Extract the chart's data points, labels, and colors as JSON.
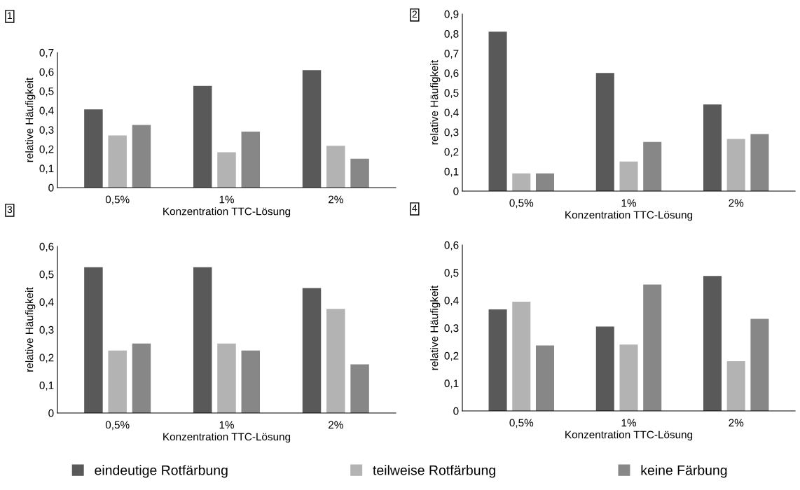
{
  "chart_data": [
    {
      "type": "bar",
      "annotations": [
        "1"
      ],
      "xlabel": "Konzentration TTC-Lösung",
      "ylabel": "relative Häufigkeit",
      "categories": [
        "0,5%",
        "1%",
        "2%"
      ],
      "legend": "bottom",
      "ylim": [
        0,
        0.7
      ],
      "yticks": [
        0,
        {
          "value": 0.1,
          "label": "0,1"
        },
        {
          "value": 0.2,
          "label": "0,2"
        },
        {
          "value": 0.3,
          "label": "0,3"
        },
        {
          "value": 0.4,
          "label": "0,4"
        },
        {
          "value": 0.5,
          "label": "0,5"
        },
        {
          "value": 0.6,
          "label": "0,6"
        },
        {
          "value": 0.7,
          "label": "0,7"
        }
      ],
      "series": [
        {
          "name": "eindeutige Rotfärbung",
          "color": "#595959",
          "values": [
            0.405,
            0.527,
            0.608
          ]
        },
        {
          "name": "teilweise Rotfärbung",
          "color": "#b3b3b3",
          "values": [
            0.27,
            0.183,
            0.217
          ]
        },
        {
          "name": "keine Färbung",
          "color": "#878787",
          "values": [
            0.325,
            0.29,
            0.15
          ]
        }
      ]
    },
    {
      "type": "bar",
      "annotations": [
        "2"
      ],
      "xlabel": "Konzentration TTC-Lösung",
      "ylabel": "relative Häufigkeit",
      "categories": [
        "0,5%",
        "1%",
        "2%"
      ],
      "ylim": [
        0,
        0.9
      ],
      "yticks": [
        0,
        {
          "value": 0.1,
          "label": "0,1"
        },
        {
          "value": 0.2,
          "label": "0,2"
        },
        {
          "value": 0.3,
          "label": "0,3"
        },
        {
          "value": 0.4,
          "label": "0,4"
        },
        {
          "value": 0.5,
          "label": "0,5"
        },
        {
          "value": 0.6,
          "label": "0,6"
        },
        {
          "value": 0.7,
          "label": "0,7"
        },
        {
          "value": 0.8,
          "label": "0,8"
        },
        {
          "value": 0.9,
          "label": "0,9"
        }
      ],
      "series": [
        {
          "color": "#595959",
          "values": [
            0.81,
            0.6,
            0.44
          ]
        },
        {
          "color": "#b3b3b3",
          "values": [
            0.09,
            0.15,
            0.265
          ]
        },
        {
          "color": "#878787",
          "values": [
            0.09,
            0.25,
            0.29
          ]
        }
      ]
    },
    {
      "type": "bar",
      "annotations": [
        "3"
      ],
      "xlabel": "Konzentration TTC-Lösung",
      "ylabel": "relative Häufigkeit",
      "categories": [
        "0,5%",
        "1%",
        "2%"
      ],
      "ylim": [
        0,
        0.6
      ],
      "yticks": [
        0,
        {
          "value": 0.1,
          "label": "0,1"
        },
        {
          "value": 0.2,
          "label": "0,2"
        },
        {
          "value": 0.3,
          "label": "0,3"
        },
        {
          "value": 0.4,
          "label": "0,4"
        },
        {
          "value": 0.5,
          "label": "0,5"
        },
        {
          "value": 0.6,
          "label": "0,6"
        }
      ],
      "series": [
        {
          "color": "#595959",
          "values": [
            0.525,
            0.525,
            0.45
          ]
        },
        {
          "color": "#b3b3b3",
          "values": [
            0.225,
            0.25,
            0.375
          ]
        },
        {
          "color": "#878787",
          "values": [
            0.25,
            0.225,
            0.175
          ]
        }
      ]
    },
    {
      "type": "bar",
      "annotations": [
        "4"
      ],
      "xlabel": "Konzentration TTC-Lösung",
      "ylabel": "relative Häufigkeit",
      "categories": [
        "0,5%",
        "1%",
        "2%"
      ],
      "ylim": [
        0,
        0.6
      ],
      "yticks": [
        0,
        {
          "value": 0.1,
          "label": "0,1"
        },
        {
          "value": 0.2,
          "label": "0,2"
        },
        {
          "value": 0.3,
          "label": "0,3"
        },
        {
          "value": 0.4,
          "label": "0,4"
        },
        {
          "value": 0.5,
          "label": "0,5"
        },
        {
          "value": 0.6,
          "label": "0,6"
        }
      ],
      "series": [
        {
          "color": "#595959",
          "values": [
            0.367,
            0.305,
            0.488
          ]
        },
        {
          "color": "#b3b3b3",
          "values": [
            0.395,
            0.24,
            0.18
          ]
        },
        {
          "color": "#878787",
          "values": [
            0.237,
            0.457,
            0.333
          ]
        }
      ]
    }
  ]
}
